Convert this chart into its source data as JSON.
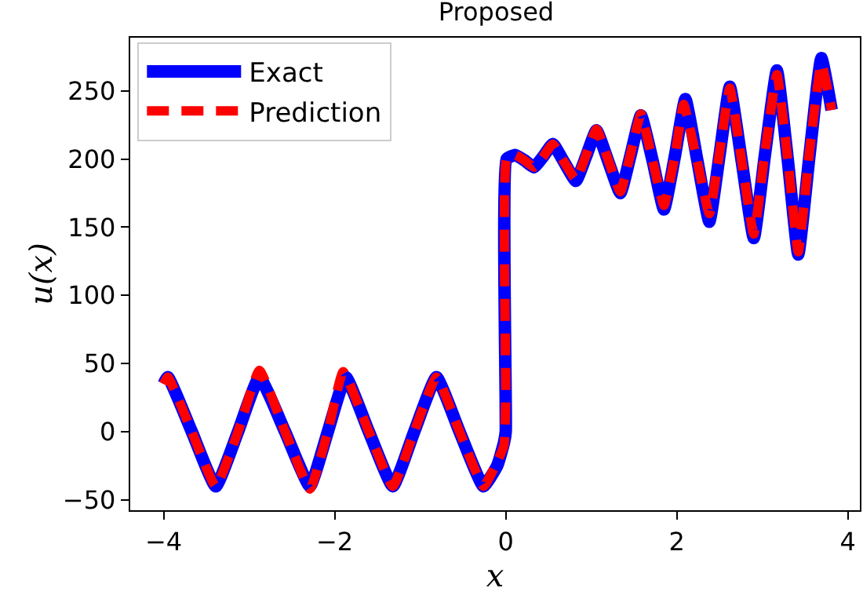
{
  "chart_data": {
    "type": "line",
    "title": "Proposed",
    "xlabel": "x",
    "ylabel": "u(x)",
    "xlim": [
      -4.39,
      4.14
    ],
    "ylim": [
      -57.6,
      289
    ],
    "xticks": [
      {
        "value": -4,
        "label": "−4"
      },
      {
        "value": -2,
        "label": "−2"
      },
      0,
      2,
      4
    ],
    "yticks": [
      {
        "value": -50,
        "label": "−50"
      },
      0,
      50,
      100,
      150,
      200,
      250
    ],
    "grid": false,
    "legend": "top left",
    "marker": "none",
    "series": [
      {
        "name": "Exact",
        "color": "#0000ff",
        "line_style": "solid",
        "x": [
          -4,
          -3.95,
          -3.67,
          -3.39,
          -3.13,
          -2.88,
          -2.58,
          -2.29,
          -2.08,
          -1.87,
          -1.6,
          -1.32,
          -1.07,
          -0.81,
          -0.54,
          -0.26,
          -0.1,
          -0.02,
          0,
          0.01,
          0.11,
          0.22,
          0.33,
          0.44,
          0.55,
          0.68,
          0.82,
          0.94,
          1.06,
          1.2,
          1.34,
          1.46,
          1.58,
          1.72,
          1.85,
          1.98,
          2.1,
          2.24,
          2.38,
          2.5,
          2.62,
          2.76,
          2.9,
          3.03,
          3.17,
          3.3,
          3.42,
          3.55,
          3.69,
          3.81
        ],
        "values": [
          35,
          40,
          0,
          -40,
          0,
          40,
          0,
          -40,
          0,
          40,
          0,
          -40,
          0,
          40,
          0,
          -40,
          -25,
          -8,
          0,
          200,
          203,
          199,
          194,
          202,
          211,
          198,
          184,
          202,
          221,
          198,
          175,
          203,
          232,
          198,
          163,
          203,
          244,
          199,
          154,
          203,
          253,
          198,
          142,
          203,
          265,
          198,
          130,
          202,
          274,
          236
        ]
      },
      {
        "name": "Prediction",
        "color": "#ff0000",
        "line_style": "dashed",
        "x": [
          -4,
          -3.95,
          -3.67,
          -3.39,
          -3.13,
          -2.88,
          -2.58,
          -2.29,
          -2.08,
          -1.9,
          -1.6,
          -1.32,
          -1.07,
          -0.81,
          -0.54,
          -0.26,
          -0.1,
          -0.02,
          0,
          0.01,
          0.11,
          0.22,
          0.33,
          0.44,
          0.55,
          0.68,
          0.82,
          0.94,
          1.06,
          1.2,
          1.34,
          1.46,
          1.58,
          1.72,
          1.85,
          1.98,
          2.08,
          2.24,
          2.38,
          2.5,
          2.62,
          2.76,
          2.9,
          3.03,
          3.17,
          3.3,
          3.42,
          3.55,
          3.69,
          3.81
        ],
        "values": [
          35,
          40,
          0,
          -40,
          0,
          45,
          0,
          -42,
          0,
          44,
          0,
          -40,
          0,
          40,
          0,
          -40,
          -22,
          -10,
          30,
          200,
          203,
          199,
          194,
          202,
          211,
          198,
          185,
          203,
          222,
          199,
          176,
          204,
          233,
          198,
          166,
          203,
          240,
          198,
          160,
          205,
          252,
          198,
          145,
          205,
          262,
          198,
          132,
          205,
          270,
          236
        ]
      }
    ]
  }
}
